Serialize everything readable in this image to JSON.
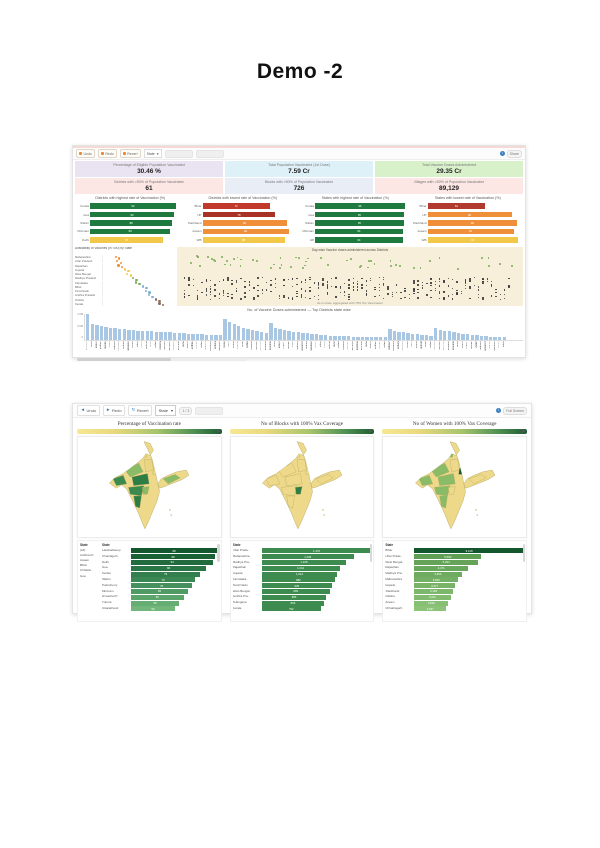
{
  "page": {
    "title": "Demo -2"
  },
  "dashboard1": {
    "toolbar": {
      "buttons": [
        "Undo",
        "Redo",
        "Revert"
      ],
      "select_value": "State",
      "right_label": "Share"
    },
    "kpis": [
      {
        "label": "Percentage of Eligible Population Vaccinated",
        "value": "30.46 %",
        "bg": "#eae3f2"
      },
      {
        "label": "Total Population Vaccinated (1st Dose)",
        "value": "7.59 Cr",
        "bg": "#def0f8"
      },
      {
        "label": "Total Vaccine Doses Administered",
        "value": "29.35 Cr",
        "bg": "#d9f1cb"
      },
      {
        "label": "Districts with >50% of Population Vaccinated",
        "value": "61",
        "bg": "#fce7e5"
      },
      {
        "label": "Blocks with >50% of Population Vaccinated",
        "value": "726",
        "bg": "#e9eef6"
      },
      {
        "label": "Villages with >50% of Population Vaccinated",
        "value": "89,129",
        "bg": "#fce7e5"
      }
    ],
    "bar_charts": [
      {
        "title": "Districts with highest rate of Vaccination (%)",
        "bars": [
          {
            "label": "Kerala",
            "value": 92,
            "color": "#1e7a3e"
          },
          {
            "label": "Goa",
            "value": 90,
            "color": "#1e7a3e"
          },
          {
            "label": "Sikkim",
            "value": 88,
            "color": "#1e7a3e"
          },
          {
            "label": "Mizoram",
            "value": 86,
            "color": "#1e7a3e"
          },
          {
            "label": "Delhi",
            "value": 78,
            "color": "#f2c84b"
          }
        ]
      },
      {
        "title": "Districts with lowest rate of Vaccination (%)",
        "bars": [
          {
            "label": "Bihar",
            "value": 72,
            "color": "#c0392b"
          },
          {
            "label": "UP",
            "value": 78,
            "color": "#a93226"
          },
          {
            "label": "Jharkhand",
            "value": 90,
            "color": "#ef8f3a"
          },
          {
            "label": "Assam",
            "value": 92,
            "color": "#ef8f3a"
          },
          {
            "label": "WB",
            "value": 88,
            "color": "#f2c84b"
          }
        ]
      },
      {
        "title": "States with highest rate of Vaccination (%)",
        "bars": [
          {
            "label": "Kerala",
            "value": 96,
            "color": "#1e7a3e"
          },
          {
            "label": "Goa",
            "value": 95,
            "color": "#1e7a3e"
          },
          {
            "label": "Sikkim",
            "value": 95,
            "color": "#1e7a3e"
          },
          {
            "label": "Mizoram",
            "value": 94,
            "color": "#1e7a3e"
          },
          {
            "label": "HP",
            "value": 94,
            "color": "#1e7a3e"
          }
        ]
      },
      {
        "title": "States with lowest rate of Vaccination (%)",
        "bars": [
          {
            "label": "Bihar",
            "value": 62,
            "color": "#b03a2e"
          },
          {
            "label": "UP",
            "value": 90,
            "color": "#ef8f3a"
          },
          {
            "label": "Jharkhand",
            "value": 96,
            "color": "#ef8f3a"
          },
          {
            "label": "Assam",
            "value": 92,
            "color": "#ef8f3a"
          },
          {
            "label": "WB",
            "value": 97,
            "color": "#f2c84b"
          }
        ]
      }
    ],
    "dot_plot": {
      "title": "Availability of Vaccines (in '000) by State",
      "rows": [
        {
          "label": "Maharashtra",
          "x": 16,
          "color": "#ef8f3a"
        },
        {
          "label": "Uttar Pradesh",
          "x": 18,
          "color": "#ef8f3a"
        },
        {
          "label": "Rajasthan",
          "x": 20,
          "color": "#ef8f3a"
        },
        {
          "label": "Gujarat",
          "x": 29,
          "color": "#f2c84b"
        },
        {
          "label": "West Bengal",
          "x": 32,
          "color": "#f2c84b"
        },
        {
          "label": "Madhya Pradesh",
          "x": 40,
          "color": "#7daf5f"
        },
        {
          "label": "Karnataka",
          "x": 44,
          "color": "#7daf5f"
        },
        {
          "label": "Bihar",
          "x": 54,
          "color": "#7fb3d3"
        },
        {
          "label": "Tamil Nadu",
          "x": 58,
          "color": "#7fb3d3"
        },
        {
          "label": "Andhra Pradesh",
          "x": 62,
          "color": "#7fb3d3"
        },
        {
          "label": "Odisha",
          "x": 72,
          "color": "#8d6e63"
        },
        {
          "label": "Kerala",
          "x": 77,
          "color": "#8d6e63"
        }
      ]
    },
    "strip_plot": {
      "title": "Day-wise Vaccine doses administered across Districts",
      "caption": "As on date, aggregated with 75% Top Vaccination",
      "seed": 13,
      "green_dots": 55,
      "columns": 76
    },
    "bottom_chart": {
      "title": "No. of Vaccine Doses administered — Top Districts state wise",
      "bar_color": "#a9c6e3",
      "yticks": [
        "1.0M",
        "0.5M",
        "0"
      ],
      "values": [
        100,
        62,
        56,
        52,
        50,
        47,
        45,
        43,
        41,
        39,
        37,
        36,
        35,
        34,
        33,
        32,
        31,
        30,
        29,
        28,
        27,
        26,
        25,
        24,
        23,
        22,
        21,
        20,
        19,
        18,
        80,
        68,
        60,
        54,
        48,
        43,
        38,
        34,
        30,
        26,
        66,
        46,
        42,
        38,
        35,
        32,
        30,
        28,
        26,
        24,
        22,
        20,
        18,
        17,
        16,
        15,
        14,
        14,
        13,
        13,
        12,
        12,
        11,
        11,
        10,
        10,
        42,
        36,
        32,
        29,
        26,
        24,
        22,
        20,
        18,
        16,
        48,
        40,
        36,
        33,
        30,
        27,
        25,
        23,
        21,
        19,
        17,
        15,
        13,
        12,
        11,
        10
      ],
      "labels": [
        "Mumbai",
        "Pune",
        "Thane",
        "Nagpur",
        "Nashik",
        "Jaipur",
        "Jodhpur",
        "Lucknow",
        "Kanpur",
        "Varanasi",
        "Patna",
        "Gaya",
        "Indore",
        "Bhopal",
        "Surat",
        "Rajkot",
        "Kolkata",
        "Howrah",
        "Chennai",
        "Madurai"
      ]
    }
  },
  "dashboard2": {
    "toolbar": {
      "buttons": [
        "Undo",
        "Redo",
        "Revert"
      ],
      "select_value": "State",
      "pager": "1 / 3",
      "fullscreen": "Full Screen"
    },
    "columns": [
      {
        "title": "Percentage of Vaccination rate",
        "map_fills": [
          "#e9d684",
          "#8abc68",
          "#3c8a4e",
          "#e9d684",
          "#2e7d44",
          "#e9d684",
          "#3c8a4e",
          "#8abc68",
          "#2e7d44",
          "#8abc68"
        ],
        "filter_title": "State",
        "filters": [
          "(All)",
          "Andhra Pr..",
          "Assam",
          "Bihar",
          "Chhattis..",
          "Goa"
        ],
        "chart": {
          "header": "State",
          "labels": [
            "Lakshadweep",
            "Chandigarh",
            "Delhi",
            "Goa",
            "Kerala",
            "Sikkim",
            "Puducherry",
            "Mizoram",
            "Himachal P..",
            "Tripura",
            "Uttarakhand"
          ],
          "values": [
            98,
            96,
            94,
            86,
            79,
            73,
            70,
            65,
            60,
            55,
            50
          ],
          "value_labels": [
            "98",
            "96",
            "94",
            "86",
            "79",
            "73",
            "70",
            "65",
            "60",
            "55",
            "50"
          ],
          "colors": [
            "#14572e",
            "#1b6136",
            "#226b3e",
            "#2a7546",
            "#327e4d",
            "#3b8754",
            "#45905c",
            "#509a64",
            "#5ba46c",
            "#66ad74",
            "#72b67c"
          ]
        }
      },
      {
        "title": "No of Blocks with 100% Vax Coverage",
        "map_fills": [
          "#eed98b",
          "#eed98b",
          "#eed98b",
          "#eed98b",
          "#eed98b",
          "#eed98b",
          "#eed98b",
          "#2e7d44",
          "#eed98b",
          "#eed98b"
        ],
        "chart": {
          "header": "State",
          "labels": [
            "Uttar Prade..",
            "Maharashtra",
            "Madhya Pra..",
            "Rajasthan",
            "Gujarat",
            "Karnataka",
            "Tamil Nadu",
            "West Bengal",
            "Andhra Pra..",
            "Telangana",
            "Kerala"
          ],
          "values": [
            100,
            84,
            77,
            71,
            69,
            67,
            64,
            62,
            59,
            57,
            54
          ],
          "value_labels": [
            "1,470",
            "1,236",
            "1,128",
            "1,041",
            "1,012",
            "982",
            "939",
            "909",
            "865",
            "836",
            "792"
          ],
          "colors": "#3d8b4f"
        }
      },
      {
        "title": "No of Women with 100% Vax Coverage",
        "map_fills": [
          "#8abc68",
          "#8abc68",
          "#8abc68",
          "#eed98b",
          "#8abc68",
          "#14572e",
          "#8abc68",
          "#eed98b",
          "#8abc68",
          "#eed98b"
        ],
        "chart": {
          "header": "State",
          "labels": [
            "Bihar",
            "Uttar Prade..",
            "West Bengal",
            "Rajasthan",
            "Madhya Pra..",
            "Maharashtra",
            "Gujarat",
            "Jharkhand",
            "Odisha",
            "Assam",
            "Chhattisgarh"
          ],
          "values": [
            100,
            61,
            58,
            49,
            43,
            40,
            37,
            35,
            33,
            31,
            29
          ],
          "value_labels": [
            "9,128",
            "5,560",
            "5,294",
            "4,471",
            "3,924",
            "3,650",
            "3,377",
            "3,194",
            "3,011",
            "2,829",
            "2,647"
          ],
          "colors": [
            "#14572e",
            "#5f9f54",
            "#64a358",
            "#69a75c",
            "#6eab60",
            "#73af64",
            "#78b368",
            "#7db76c",
            "#82bb70",
            "#87bf74",
            "#8cc378"
          ]
        }
      }
    ]
  }
}
